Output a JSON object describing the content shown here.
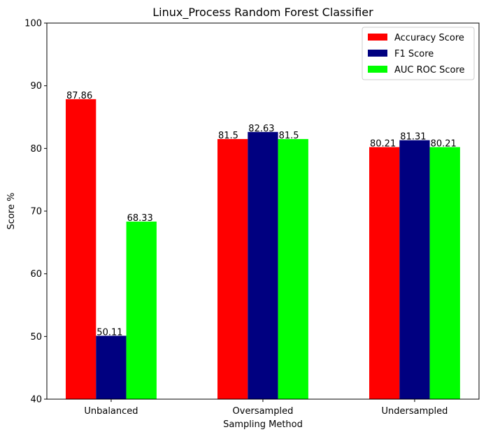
{
  "chart_data": {
    "type": "bar",
    "title": "Linux_Process Random Forest Classifier",
    "xlabel": "Sampling Method",
    "ylabel": "Score %",
    "categories": [
      "Unbalanced",
      "Oversampled",
      "Undersampled"
    ],
    "ylim": [
      40,
      100
    ],
    "yticks": [
      40,
      50,
      60,
      70,
      80,
      90,
      100
    ],
    "grid": false,
    "legend_position": "top-right",
    "series": [
      {
        "name": "Accuracy Score",
        "color": "#ff0000",
        "values": [
          87.86,
          81.5,
          80.21
        ],
        "labels": [
          "87.86",
          "81.5",
          "80.21"
        ]
      },
      {
        "name": "F1 Score",
        "color": "#000080",
        "values": [
          50.11,
          82.63,
          81.31
        ],
        "labels": [
          "50.11",
          "82.63",
          "81.31"
        ]
      },
      {
        "name": "AUC ROC Score",
        "color": "#00ff00",
        "values": [
          68.33,
          81.5,
          80.21
        ],
        "labels": [
          "68.33",
          "81.5",
          "80.21"
        ]
      }
    ]
  }
}
